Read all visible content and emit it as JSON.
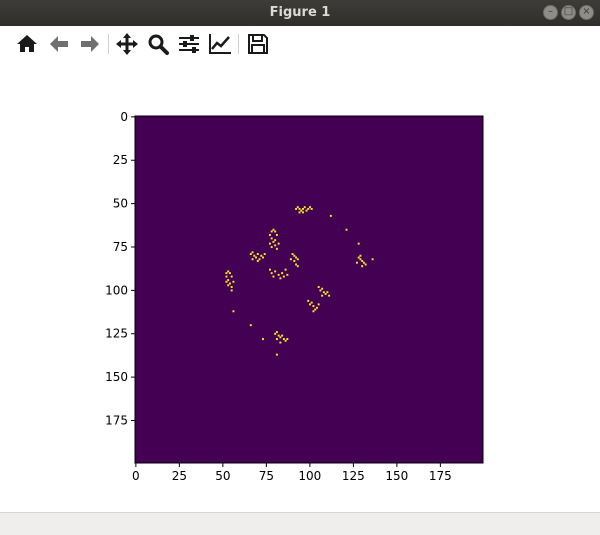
{
  "window": {
    "title": "Figure 1"
  },
  "toolbar": {
    "buttons": [
      {
        "name": "home-button",
        "icon": "home-icon"
      },
      {
        "name": "back-button",
        "icon": "arrow-left-icon"
      },
      {
        "name": "forward-button",
        "icon": "arrow-right-icon"
      },
      {
        "name": "pan-button",
        "icon": "move-icon"
      },
      {
        "name": "zoom-button",
        "icon": "magnifier-icon"
      },
      {
        "name": "subplots-button",
        "icon": "sliders-icon"
      },
      {
        "name": "edit-axes-button",
        "icon": "line-chart-icon"
      },
      {
        "name": "save-button",
        "icon": "floppy-disk-icon"
      }
    ]
  },
  "chart_data": {
    "type": "heatmap",
    "title": "",
    "xlabel": "",
    "ylabel": "",
    "xlim": [
      0,
      200
    ],
    "ylim": [
      200,
      0
    ],
    "xticks": [
      "0",
      "25",
      "50",
      "75",
      "100",
      "125",
      "150",
      "175"
    ],
    "yticks": [
      "0",
      "25",
      "50",
      "75",
      "100",
      "125",
      "150",
      "175"
    ],
    "colors": {
      "background": "#440154",
      "cell": "#fde725"
    },
    "live_cells": [
      [
        92,
        53
      ],
      [
        93,
        52
      ],
      [
        94,
        53
      ],
      [
        95,
        54
      ],
      [
        96,
        53
      ],
      [
        97,
        52
      ],
      [
        98,
        54
      ],
      [
        99,
        53
      ],
      [
        100,
        52
      ],
      [
        101,
        53
      ],
      [
        96,
        55
      ],
      [
        94,
        55
      ],
      [
        112,
        57
      ],
      [
        121,
        65
      ],
      [
        128,
        73
      ],
      [
        128,
        81
      ],
      [
        129,
        82
      ],
      [
        130,
        83
      ],
      [
        131,
        84
      ],
      [
        130,
        86
      ],
      [
        127,
        84
      ],
      [
        129,
        80
      ],
      [
        132,
        85
      ],
      [
        136,
        82
      ],
      [
        78,
        66
      ],
      [
        79,
        65
      ],
      [
        80,
        66
      ],
      [
        77,
        68
      ],
      [
        81,
        68
      ],
      [
        78,
        70
      ],
      [
        80,
        71
      ],
      [
        79,
        72
      ],
      [
        82,
        73
      ],
      [
        80,
        74
      ],
      [
        78,
        75
      ],
      [
        77,
        73
      ],
      [
        81,
        76
      ],
      [
        66,
        79
      ],
      [
        67,
        78
      ],
      [
        68,
        80
      ],
      [
        69,
        81
      ],
      [
        70,
        79
      ],
      [
        71,
        82
      ],
      [
        72,
        80
      ],
      [
        73,
        81
      ],
      [
        74,
        79
      ],
      [
        67,
        82
      ],
      [
        70,
        83
      ],
      [
        77,
        88
      ],
      [
        78,
        90
      ],
      [
        80,
        89
      ],
      [
        82,
        91
      ],
      [
        84,
        90
      ],
      [
        85,
        92
      ],
      [
        86,
        88
      ],
      [
        87,
        91
      ],
      [
        83,
        93
      ],
      [
        79,
        92
      ],
      [
        90,
        79
      ],
      [
        91,
        80
      ],
      [
        92,
        81
      ],
      [
        91,
        83
      ],
      [
        92,
        85
      ],
      [
        93,
        82
      ],
      [
        93,
        86
      ],
      [
        89,
        82
      ],
      [
        52,
        90
      ],
      [
        53,
        89
      ],
      [
        54,
        90
      ],
      [
        52,
        92
      ],
      [
        55,
        92
      ],
      [
        53,
        94
      ],
      [
        54,
        96
      ],
      [
        55,
        98
      ],
      [
        53,
        97
      ],
      [
        56,
        95
      ],
      [
        55,
        100
      ],
      [
        52,
        95
      ],
      [
        105,
        98
      ],
      [
        106,
        100
      ],
      [
        107,
        99
      ],
      [
        108,
        101
      ],
      [
        109,
        102
      ],
      [
        110,
        101
      ],
      [
        111,
        103
      ],
      [
        107,
        103
      ],
      [
        99,
        106
      ],
      [
        100,
        108
      ],
      [
        101,
        107
      ],
      [
        102,
        109
      ],
      [
        103,
        111
      ],
      [
        104,
        110
      ],
      [
        102,
        112
      ],
      [
        105,
        108
      ],
      [
        56,
        112
      ],
      [
        66,
        120
      ],
      [
        73,
        128
      ],
      [
        80,
        125
      ],
      [
        81,
        124
      ],
      [
        82,
        126
      ],
      [
        83,
        127
      ],
      [
        84,
        126
      ],
      [
        85,
        128
      ],
      [
        86,
        129
      ],
      [
        87,
        128
      ],
      [
        83,
        130
      ],
      [
        81,
        128
      ],
      [
        81,
        137
      ]
    ]
  }
}
